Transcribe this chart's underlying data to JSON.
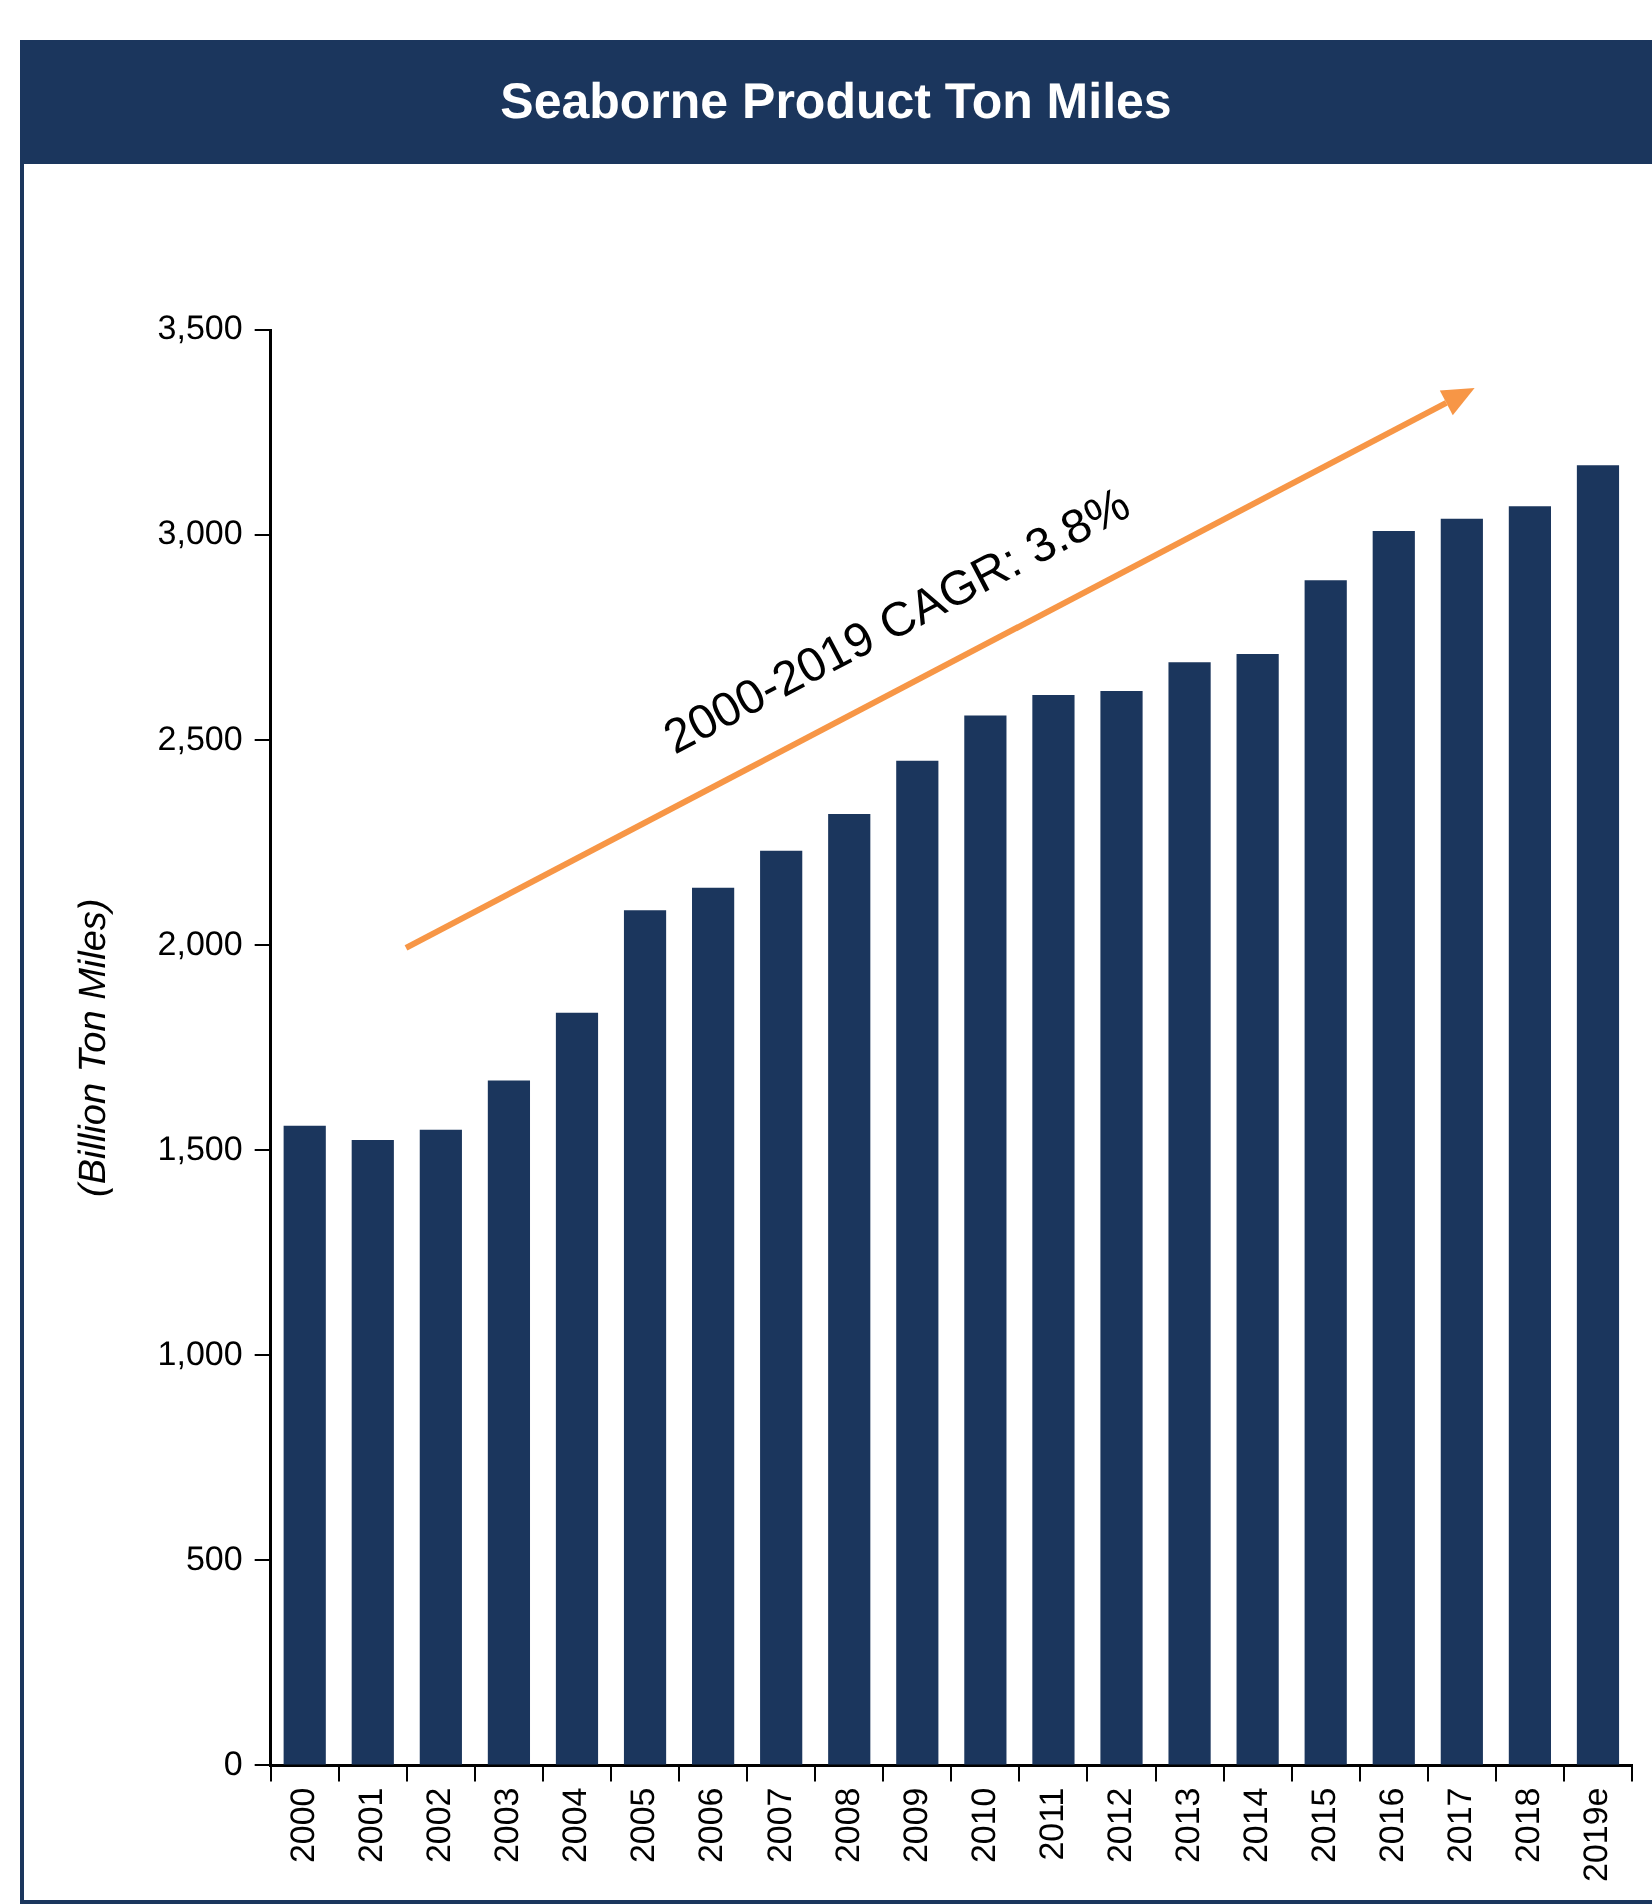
{
  "chart_data": {
    "type": "bar",
    "title": "Seaborne Product Ton Miles",
    "ylabel": "(Billion Ton Miles)",
    "categories": [
      "2000",
      "2001",
      "2002",
      "2003",
      "2004",
      "2005",
      "2006",
      "2007",
      "2008",
      "2009",
      "2010",
      "2011",
      "2012",
      "2013",
      "2014",
      "2015",
      "2016",
      "2017",
      "2018",
      "2019e"
    ],
    "values": [
      1560,
      1525,
      1550,
      1670,
      1835,
      2085,
      2140,
      2230,
      2320,
      2450,
      2560,
      2610,
      2620,
      2690,
      2710,
      2890,
      3010,
      3040,
      3070,
      3170
    ],
    "color": "#1b365d",
    "ylim": [
      0,
      3500
    ],
    "yticks": [
      {
        "value": 0,
        "label": "0"
      },
      {
        "value": 500,
        "label": "500"
      },
      {
        "value": 1000,
        "label": "1,000"
      },
      {
        "value": 1500,
        "label": "1,500"
      },
      {
        "value": 2000,
        "label": "2,000"
      },
      {
        "value": 2500,
        "label": "2,500"
      },
      {
        "value": 3000,
        "label": "3,000"
      },
      {
        "value": 3500,
        "label": "3,500"
      }
    ],
    "grid": false,
    "legend": false,
    "annotations": [
      "2000-2019 CAGR: 3.8%"
    ]
  }
}
